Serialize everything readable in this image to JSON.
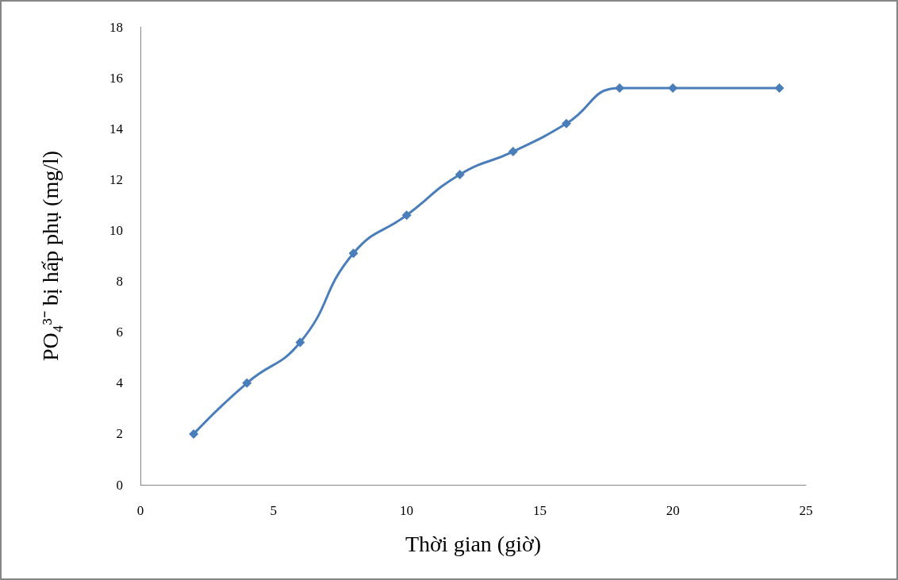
{
  "chart_data": {
    "type": "line",
    "xlabel": "Thời gian (giờ)",
    "ylabel": "PO₄³⁻ bị hấp phụ (mg/l)",
    "x": [
      2,
      4,
      6,
      8,
      10,
      12,
      14,
      16,
      18,
      20,
      24
    ],
    "series": [
      {
        "color": "#4a7ebb",
        "values": [
          2.0,
          4.0,
          5.6,
          9.1,
          10.6,
          12.2,
          13.1,
          14.2,
          15.6,
          15.6,
          15.6
        ]
      }
    ],
    "xlim": [
      0,
      25
    ],
    "xticks": [
      0,
      5,
      10,
      15,
      20,
      25
    ],
    "ylim": [
      0,
      18
    ],
    "yticks": [
      0,
      2,
      4,
      6,
      8,
      10,
      12,
      14,
      16,
      18
    ],
    "marker": "diamond",
    "line_style": "solid"
  }
}
